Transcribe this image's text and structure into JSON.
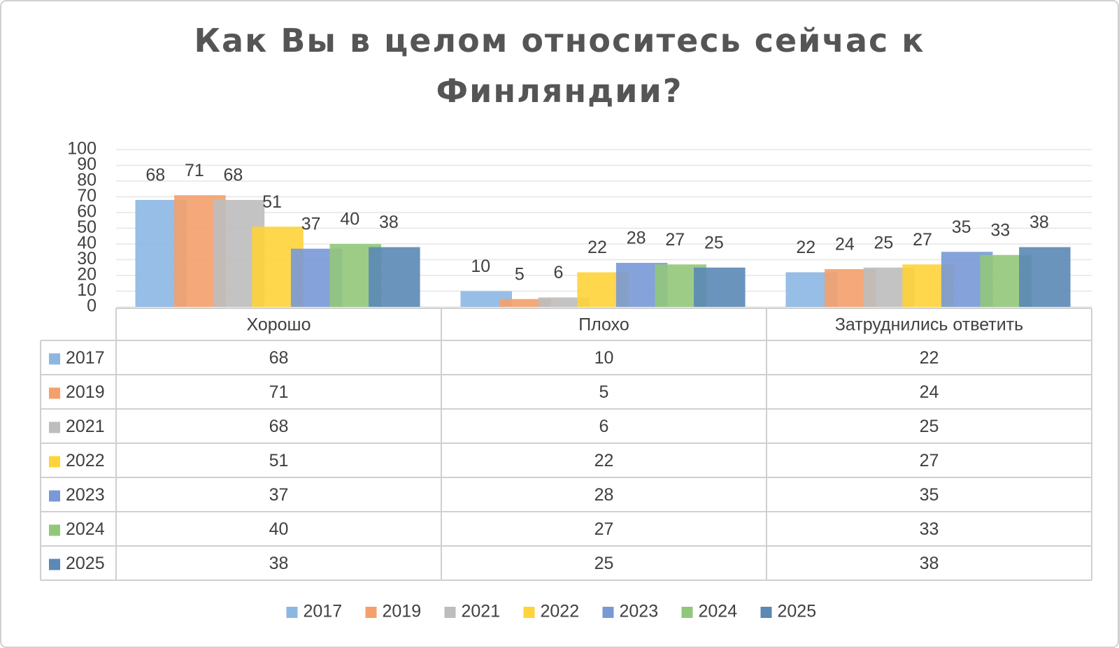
{
  "chart_data": {
    "type": "bar",
    "title": "Как Вы в целом относитесь сейчас к Финляндии?",
    "categories": [
      "Хорошо",
      "Плохо",
      "Затруднились ответить"
    ],
    "series": [
      {
        "name": "2017",
        "color": "#8cb7e3",
        "values": [
          68,
          10,
          22
        ]
      },
      {
        "name": "2019",
        "color": "#f4a06c",
        "values": [
          71,
          5,
          24
        ]
      },
      {
        "name": "2021",
        "color": "#bdbdbd",
        "values": [
          68,
          6,
          25
        ]
      },
      {
        "name": "2022",
        "color": "#ffd33a",
        "values": [
          51,
          22,
          27
        ]
      },
      {
        "name": "2023",
        "color": "#7899d6",
        "values": [
          37,
          28,
          35
        ]
      },
      {
        "name": "2024",
        "color": "#92c77a",
        "values": [
          40,
          27,
          33
        ]
      },
      {
        "name": "2025",
        "color": "#5b88b5",
        "values": [
          38,
          25,
          38
        ]
      }
    ],
    "ylim": [
      0,
      100
    ],
    "yticks": [
      0,
      10,
      20,
      30,
      40,
      50,
      60,
      70,
      80,
      90,
      100
    ],
    "grid": true
  }
}
